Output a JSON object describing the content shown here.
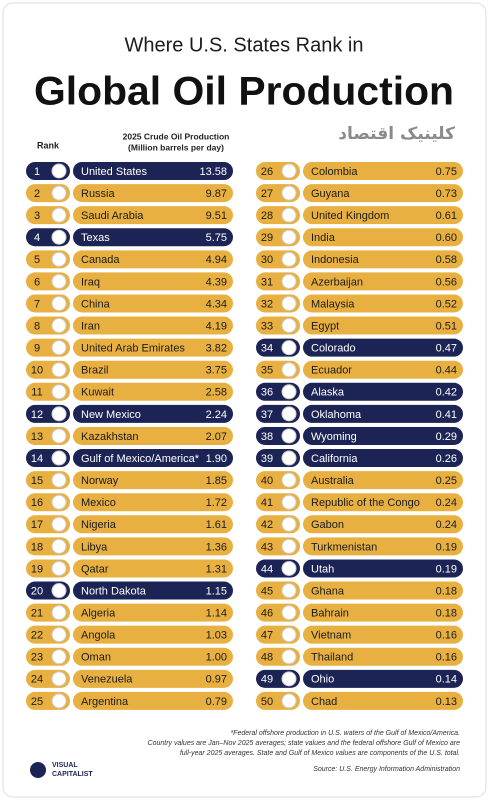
{
  "header": {
    "subtitle": "Where U.S. States Rank in",
    "title": "Global Oil Production",
    "watermark": "کلینیک اقتصاد",
    "rank_label": "Rank",
    "value_label_1": "2025 Crude Oil Production",
    "value_label_2": "(Million barrels per day)"
  },
  "table": {
    "rows": [
      [
        1,
        "United States",
        "13.58",
        "#1c2455"
      ],
      [
        2,
        "Russia",
        "9.87",
        "#e8b041"
      ],
      [
        3,
        "Saudi Arabia",
        "9.51",
        "#e8b041"
      ],
      [
        4,
        "Texas",
        "5.75",
        "#1c2455"
      ],
      [
        5,
        "Canada",
        "4.94",
        "#e8b041"
      ],
      [
        6,
        "Iraq",
        "4.39",
        "#e8b041"
      ],
      [
        7,
        "China",
        "4.34",
        "#e8b041"
      ],
      [
        8,
        "Iran",
        "4.19",
        "#e8b041"
      ],
      [
        9,
        "United Arab Emirates",
        "3.82",
        "#e8b041"
      ],
      [
        10,
        "Brazil",
        "3.75",
        "#e8b041"
      ],
      [
        11,
        "Kuwait",
        "2.58",
        "#e8b041"
      ],
      [
        12,
        "New Mexico",
        "2.24",
        "#1c2455"
      ],
      [
        13,
        "Kazakhstan",
        "2.07",
        "#e8b041"
      ],
      [
        14,
        "Gulf of Mexico/America*",
        "1.90",
        "#1c2455"
      ],
      [
        15,
        "Norway",
        "1.85",
        "#e8b041"
      ],
      [
        16,
        "Mexico",
        "1.72",
        "#e8b041"
      ],
      [
        17,
        "Nigeria",
        "1.61",
        "#e8b041"
      ],
      [
        18,
        "Libya",
        "1.36",
        "#e8b041"
      ],
      [
        19,
        "Qatar",
        "1.31",
        "#e8b041"
      ],
      [
        20,
        "North Dakota",
        "1.15",
        "#1c2455"
      ],
      [
        21,
        "Algeria",
        "1.14",
        "#e8b041"
      ],
      [
        22,
        "Angola",
        "1.03",
        "#e8b041"
      ],
      [
        23,
        "Oman",
        "1.00",
        "#e8b041"
      ],
      [
        24,
        "Venezuela",
        "0.97",
        "#e8b041"
      ],
      [
        25,
        "Argentina",
        "0.79",
        "#e8b041"
      ],
      [
        26,
        "Colombia",
        "0.75",
        "#e8b041"
      ],
      [
        27,
        "Guyana",
        "0.73",
        "#e8b041"
      ],
      [
        28,
        "United Kingdom",
        "0.61",
        "#e8b041"
      ],
      [
        29,
        "India",
        "0.60",
        "#e8b041"
      ],
      [
        30,
        "Indonesia",
        "0.58",
        "#e8b041"
      ],
      [
        31,
        "Azerbaijan",
        "0.56",
        "#e8b041"
      ],
      [
        32,
        "Malaysia",
        "0.52",
        "#e8b041"
      ],
      [
        33,
        "Egypt",
        "0.51",
        "#e8b041"
      ],
      [
        34,
        "Colorado",
        "0.47",
        "#1c2455"
      ],
      [
        35,
        "Ecuador",
        "0.44",
        "#e8b041"
      ],
      [
        36,
        "Alaska",
        "0.42",
        "#1c2455"
      ],
      [
        37,
        "Oklahoma",
        "0.41",
        "#1c2455"
      ],
      [
        38,
        "Wyoming",
        "0.29",
        "#1c2455"
      ],
      [
        39,
        "California",
        "0.26",
        "#1c2455"
      ],
      [
        40,
        "Australia",
        "0.25",
        "#e8b041"
      ],
      [
        41,
        "Republic of the Congo",
        "0.24",
        "#e8b041"
      ],
      [
        42,
        "Gabon",
        "0.24",
        "#e8b041"
      ],
      [
        43,
        "Turkmenistan",
        "0.19",
        "#e8b041"
      ],
      [
        44,
        "Utah",
        "0.19",
        "#1c2455"
      ],
      [
        45,
        "Ghana",
        "0.18",
        "#e8b041"
      ],
      [
        46,
        "Bahrain",
        "0.18",
        "#e8b041"
      ],
      [
        47,
        "Vietnam",
        "0.16",
        "#e8b041"
      ],
      [
        48,
        "Thailand",
        "0.16",
        "#e8b041"
      ],
      [
        49,
        "Ohio",
        "0.14",
        "#1c2455"
      ],
      [
        50,
        "Chad",
        "0.13",
        "#e8b041"
      ]
    ]
  },
  "footer": {
    "notes": [
      "*Federal offshore production in U.S. waters of the Gulf of Mexico/America.",
      "Country values are Jan–Nov 2025 averages; state values and the federal offshore Gulf of Mexico are",
      "full-year 2025 averages. State and Gulf of Mexico values are components of the U.S. total."
    ],
    "source": "Source: U.S. Energy Information Administration",
    "logo_1": "VISUAL",
    "logo_2": "CAPITALIST"
  }
}
